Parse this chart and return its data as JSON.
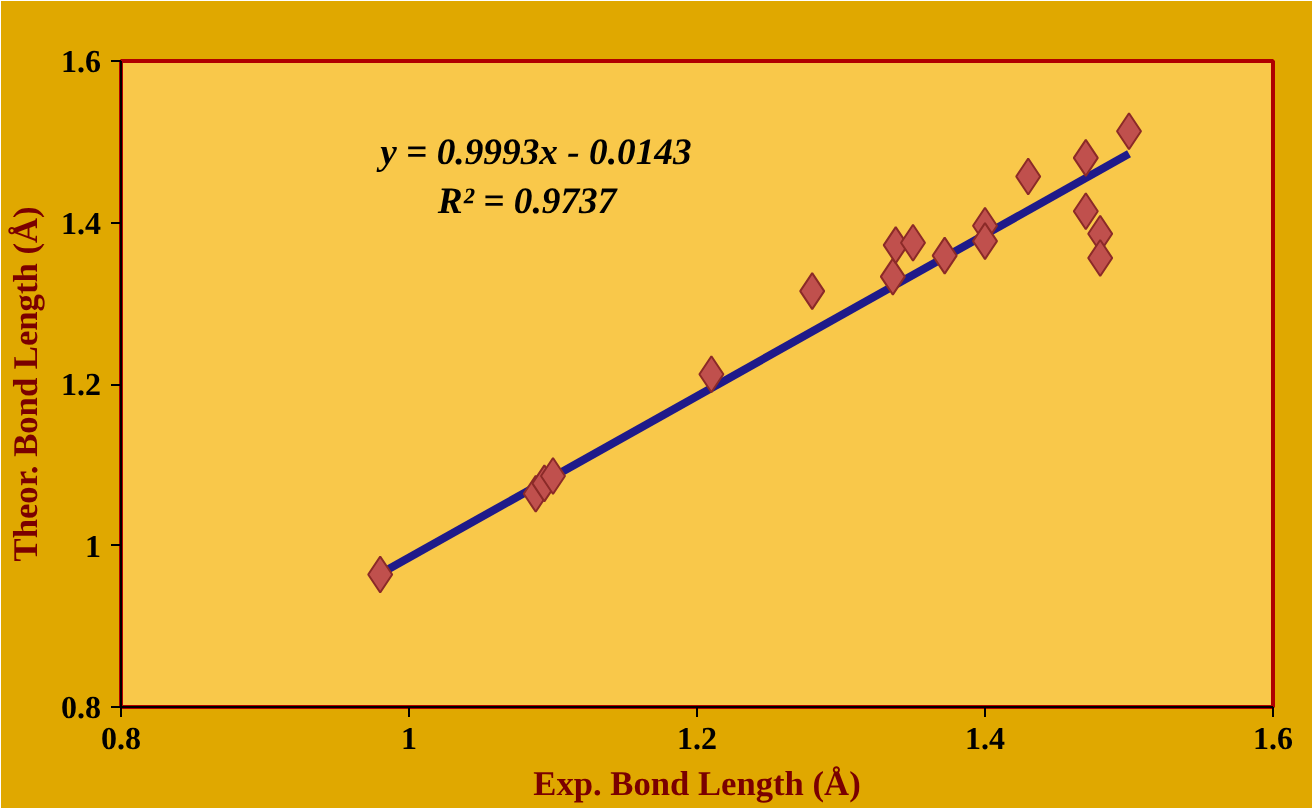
{
  "chart_data": {
    "type": "scatter",
    "xlabel": "Exp. Bond Length (Å)",
    "ylabel": "Theor. Bond Length (Å)",
    "xlim": [
      0.8,
      1.6
    ],
    "ylim": [
      0.8,
      1.6
    ],
    "xticks": [
      0.8,
      1,
      1.2,
      1.4,
      1.6
    ],
    "yticks": [
      0.8,
      1,
      1.2,
      1.4,
      1.6
    ],
    "grid": false,
    "annotations": [
      "y = 0.9993x - 0.0143",
      "R² = 0.9737"
    ],
    "series": [
      {
        "marker": "diamond",
        "color": "#c0504d",
        "x": [
          0.98,
          1.088,
          1.094,
          1.1,
          1.21,
          1.28,
          1.336,
          1.338,
          1.35,
          1.372,
          1.4,
          1.4,
          1.43,
          1.47,
          1.47,
          1.48,
          1.48,
          1.5
        ],
        "values": [
          0.964,
          1.064,
          1.077,
          1.086,
          1.212,
          1.315,
          1.333,
          1.372,
          1.375,
          1.359,
          1.396,
          1.377,
          1.457,
          1.48,
          1.414,
          1.386,
          1.356,
          1.513
        ]
      },
      {
        "type": "line",
        "marker": "none",
        "color": "#1f1a8a",
        "x": [
          0.98,
          1.5
        ],
        "values": [
          0.965,
          1.485
        ]
      }
    ]
  }
}
